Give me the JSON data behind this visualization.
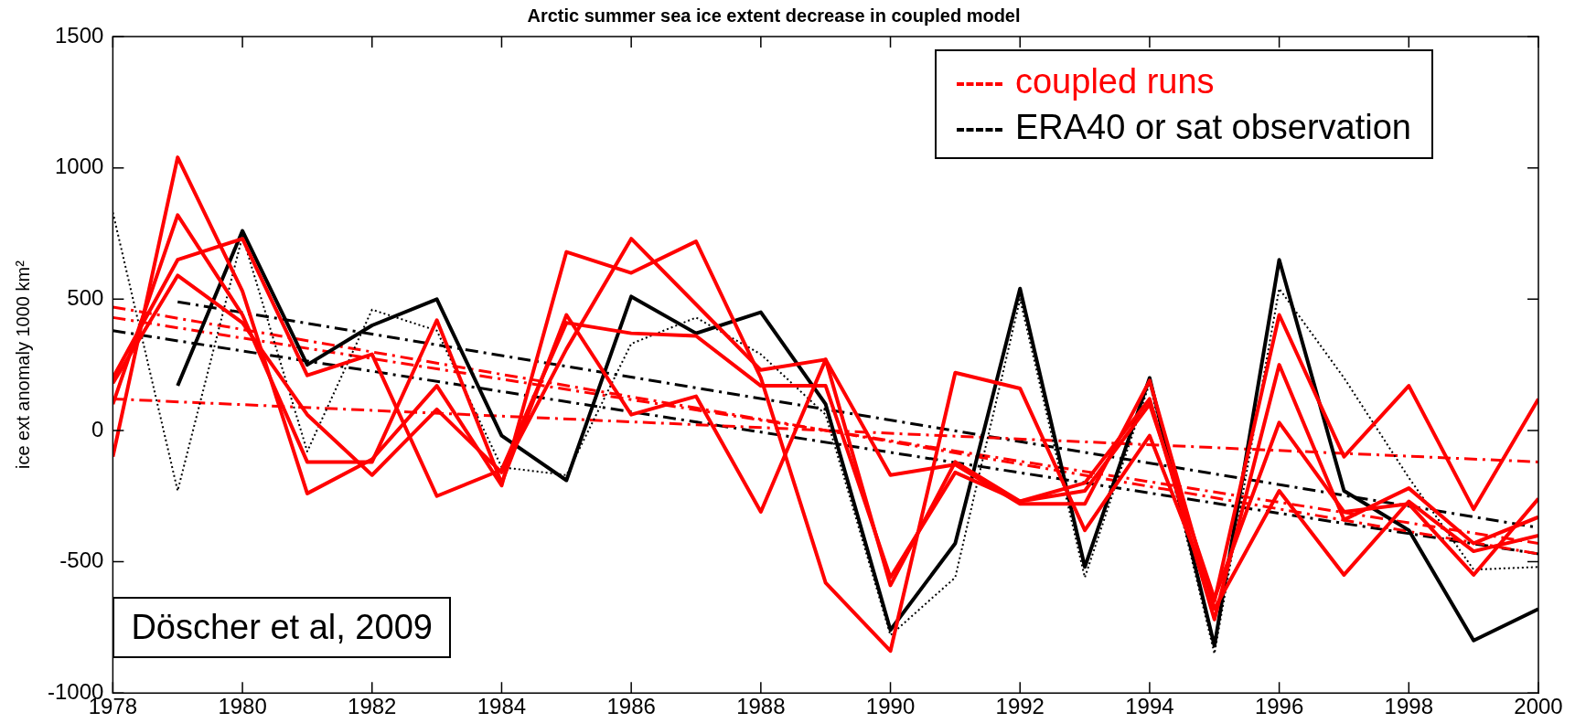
{
  "chart_data": {
    "type": "line",
    "title": "Arctic summer sea ice extent decrease in coupled model",
    "ylabel": "ice ext anomaly 1000 km²",
    "xlim": [
      1978,
      2000
    ],
    "xticks": [
      1978,
      1980,
      1982,
      1984,
      1986,
      1988,
      1990,
      1992,
      1994,
      1996,
      1998,
      2000
    ],
    "ylim": [
      -1000,
      1500
    ],
    "yticks": [
      -1000,
      -500,
      0,
      500,
      1000,
      1500
    ],
    "grid": false,
    "legend": "top right",
    "marker": "none",
    "annotations": [
      "Döscher et al, 2009"
    ],
    "series": [
      {
        "color": "#ff0000",
        "line_style": "solid",
        "x": [
          1978,
          1979,
          1980,
          1981,
          1982,
          1983,
          1984,
          1985,
          1986,
          1987,
          1988,
          1989,
          1990,
          1991,
          1992,
          1993,
          1994,
          1995,
          1996,
          1997,
          1998,
          1999,
          2000
        ],
        "values": [
          -100,
          1040,
          530,
          -240,
          -110,
          170,
          -210,
          680,
          600,
          720,
          200,
          -580,
          -840,
          220,
          160,
          -380,
          -20,
          -650,
          440,
          -100,
          170,
          -300,
          120
        ]
      },
      {
        "color": "#ff0000",
        "line_style": "solid",
        "x": [
          1978,
          1979,
          1980,
          1981,
          1982,
          1983,
          1984,
          1985,
          1986,
          1987,
          1988,
          1989,
          1990,
          1991,
          1992,
          1993,
          1994,
          1995,
          1996,
          1997,
          1998,
          1999,
          2000
        ],
        "values": [
          100,
          820,
          440,
          -120,
          -120,
          420,
          -200,
          440,
          60,
          130,
          -310,
          270,
          -590,
          -120,
          -270,
          -200,
          120,
          -720,
          250,
          -340,
          -220,
          -430,
          -330
        ]
      },
      {
        "color": "#ff0000",
        "line_style": "solid",
        "x": [
          1978,
          1979,
          1980,
          1981,
          1982,
          1983,
          1984,
          1985,
          1986,
          1987,
          1988,
          1989,
          1990,
          1991,
          1992,
          1993,
          1994,
          1995,
          1996,
          1997,
          1998,
          1999,
          2000
        ],
        "values": [
          200,
          650,
          730,
          210,
          290,
          -250,
          -150,
          410,
          370,
          360,
          170,
          170,
          -560,
          -160,
          -270,
          -230,
          100,
          -640,
          30,
          -310,
          -280,
          -550,
          -260
        ]
      },
      {
        "color": "#ff0000",
        "line_style": "solid",
        "x": [
          1978,
          1979,
          1980,
          1981,
          1982,
          1983,
          1984,
          1985,
          1986,
          1987,
          1988,
          1989,
          1990,
          1991,
          1992,
          1993,
          1994,
          1995,
          1996,
          1997,
          1998,
          1999,
          2000
        ],
        "values": [
          180,
          590,
          410,
          60,
          -170,
          80,
          -160,
          310,
          730,
          480,
          230,
          270,
          -170,
          -130,
          -280,
          -280,
          190,
          -680,
          -230,
          -550,
          -270,
          -460,
          -400
        ]
      },
      {
        "color": "#000000",
        "line_style": "dotted",
        "x": [
          1978,
          1979,
          1980,
          1981,
          1982,
          1983,
          1984,
          1985,
          1986,
          1987,
          1988,
          1989,
          1990,
          1991,
          1992,
          1993,
          1994,
          1995,
          1996,
          1997,
          1998,
          1999,
          2000
        ],
        "values": [
          830,
          -230,
          740,
          -80,
          460,
          380,
          -140,
          -170,
          330,
          430,
          290,
          60,
          -780,
          -560,
          500,
          -560,
          180,
          -850,
          540,
          200,
          -180,
          -530,
          -520
        ]
      },
      {
        "color": "#000000",
        "line_style": "solid",
        "x": [
          1979,
          1980,
          1981,
          1982,
          1983,
          1984,
          1985,
          1986,
          1987,
          1988,
          1989,
          1990,
          1991,
          1992,
          1993,
          1994,
          1995,
          1996,
          1997,
          1998,
          1999,
          2000
        ],
        "values": [
          170,
          760,
          250,
          400,
          500,
          -20,
          -190,
          510,
          370,
          450,
          100,
          -760,
          -430,
          540,
          -520,
          200,
          -820,
          650,
          -230,
          -380,
          -800,
          -680
        ]
      },
      {
        "name": "coupled runs",
        "color": "#ff0000",
        "line_style": "dashed",
        "x": [
          1978,
          2000
        ],
        "values": [
          470,
          -470
        ]
      },
      {
        "color": "#ff0000",
        "line_style": "dashed",
        "x": [
          1978,
          2000
        ],
        "values": [
          430,
          -430
        ]
      },
      {
        "color": "#ff0000",
        "line_style": "dashed",
        "x": [
          1978,
          2000
        ],
        "values": [
          120,
          -120
        ]
      },
      {
        "name": "ERA40 or sat observation",
        "color": "#000000",
        "line_style": "dashed",
        "x": [
          1979,
          2000
        ],
        "values": [
          490,
          -370
        ]
      },
      {
        "color": "#000000",
        "line_style": "dashed",
        "x": [
          1978,
          2000
        ],
        "values": [
          380,
          -470
        ]
      }
    ]
  }
}
